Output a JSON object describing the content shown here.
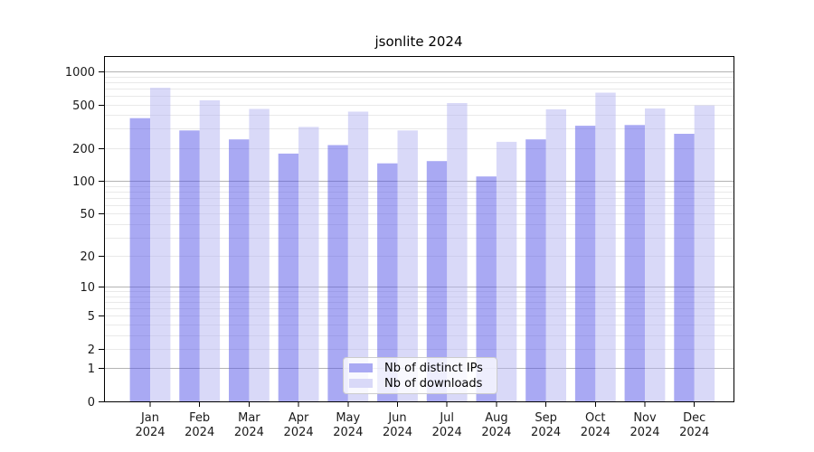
{
  "chart": {
    "title": "jsonlite 2024"
  },
  "chart_data": {
    "type": "bar",
    "title": "jsonlite 2024",
    "categories": [
      "Jan",
      "Feb",
      "Mar",
      "Apr",
      "May",
      "Jun",
      "Jul",
      "Aug",
      "Sep",
      "Oct",
      "Nov",
      "Dec"
    ],
    "category_year": "2024",
    "series": [
      {
        "name": "Nb of distinct IPs",
        "color": "#a9a9f3",
        "values": [
          375,
          290,
          240,
          178,
          213,
          145,
          152,
          110,
          240,
          320,
          325,
          270
        ]
      },
      {
        "name": "Nb of downloads",
        "color": "#d9d9f8",
        "values": [
          710,
          545,
          455,
          312,
          430,
          290,
          515,
          228,
          452,
          640,
          460,
          490
        ]
      }
    ],
    "yscale": "log1p",
    "ylim": [
      0,
      1380
    ],
    "y_ticks": [
      0,
      1,
      2,
      5,
      10,
      20,
      50,
      100,
      200,
      500,
      1000
    ],
    "y_major_grid": [
      1,
      10,
      100,
      1000
    ],
    "y_minor_grid_factors": [
      2,
      3,
      4,
      5,
      6,
      7,
      8,
      9
    ],
    "grid": true,
    "legend_position": "lower-center-inside",
    "colors": {
      "grid_major": "#b3b3b3",
      "grid_minor": "#e9e9e9",
      "axis": "#000000",
      "text": "#1a1a1a",
      "legend_border": "#cccccc"
    }
  }
}
